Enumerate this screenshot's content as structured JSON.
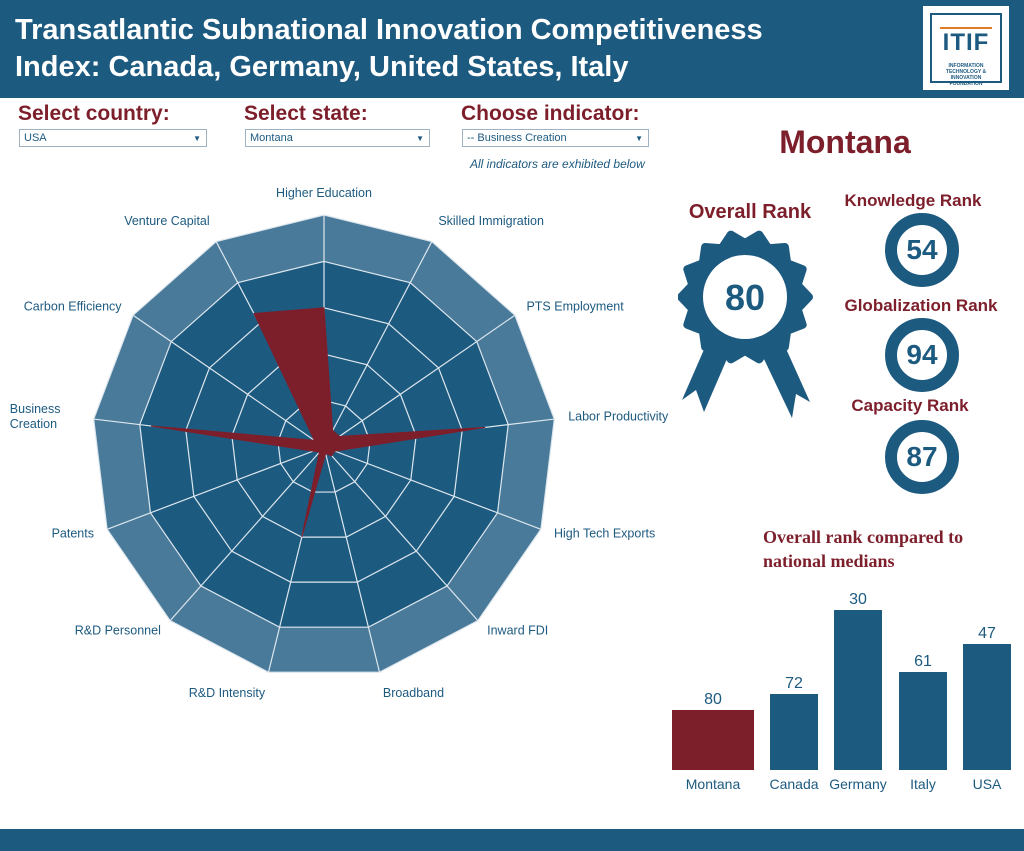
{
  "header": {
    "title_line1": "Transatlantic Subnational Innovation Competitiveness",
    "title_line2": "Index: Canada, Germany, United States, Italy",
    "logo_text": "ITIF",
    "logo_subtitle": "INFORMATION TECHNOLOGY & INNOVATION FOUNDATION"
  },
  "controls": {
    "country_label": "Select country:",
    "country_value": "USA",
    "state_label": "Select state:",
    "state_value": "Montana",
    "indicator_label": "Choose indicator:",
    "indicator_value": "-- Business Creation",
    "indicator_note": "All indicators are exhibited below"
  },
  "state": {
    "name": "Montana",
    "overall_rank_label": "Overall Rank",
    "overall_rank": "80",
    "knowledge_rank_label": "Knowledge Rank",
    "knowledge_rank": "54",
    "globalization_rank_label": "Globalization Rank",
    "globalization_rank": "94",
    "capacity_rank_label": "Capacity Rank",
    "capacity_rank": "87"
  },
  "colors": {
    "primary": "#1d5a80",
    "accent": "#7d1e2b",
    "ring_outer": "#4a7a9a"
  },
  "chart_data": [
    {
      "type": "radar",
      "axes": [
        "Higher Education",
        "Skilled Immigration",
        "PTS Employment",
        "Labor Productivity",
        "High Tech Exports",
        "Inward FDI",
        "Broadband",
        "R&D Intensity",
        "R&D Personnel",
        "Patents",
        "Business Creation",
        "Carbon Efficiency",
        "Venture Capital"
      ],
      "rings": 5,
      "series": [
        {
          "values": [
            0.6,
            0.08,
            0.08,
            0.7,
            0.05,
            0.05,
            0.03,
            0.4,
            0.03,
            0.05,
            0.75,
            0.05,
            0.65
          ]
        }
      ]
    },
    {
      "type": "bar",
      "title": "Overall rank compared to national medians",
      "categories": [
        "Montana",
        "Canada",
        "Germany",
        "Italy",
        "USA"
      ],
      "values": [
        80,
        72,
        30,
        61,
        47
      ],
      "highlight": "Montana"
    }
  ]
}
